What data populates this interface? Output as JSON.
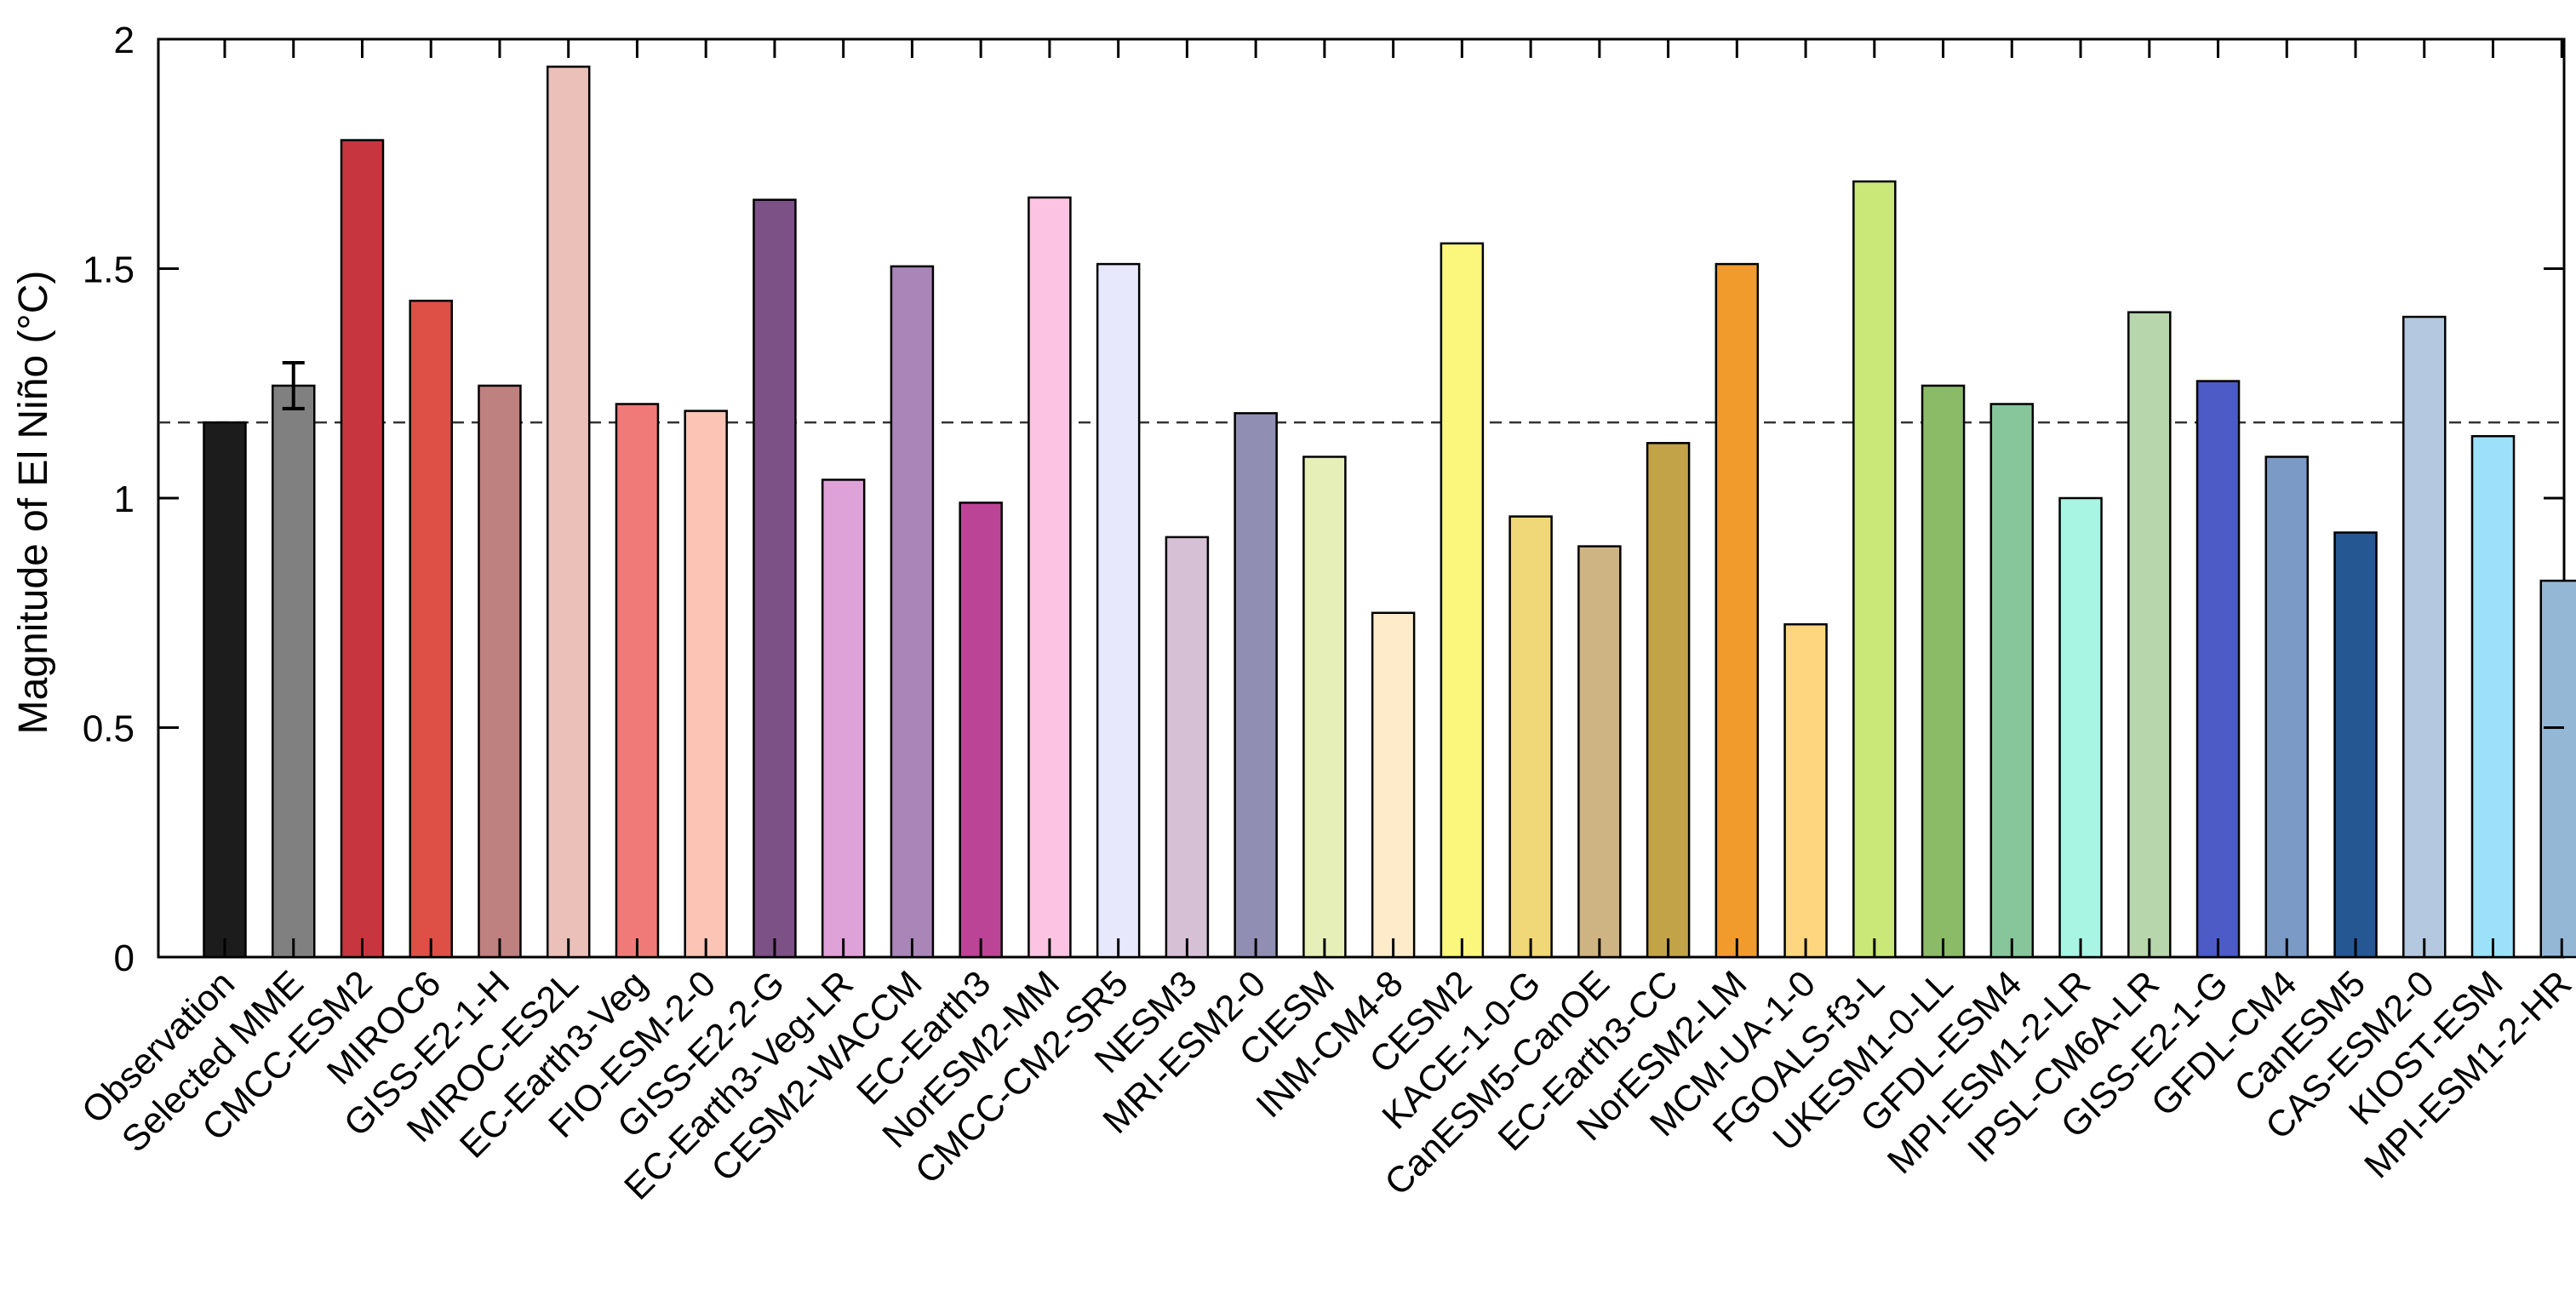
{
  "chart_data": {
    "type": "bar",
    "title": "",
    "xlabel": "",
    "ylabel": "Magnitude of El Niño (°C)",
    "ylim": [
      0,
      2
    ],
    "yticks": [
      0,
      0.5,
      1,
      1.5,
      2
    ],
    "ytick_labels": [
      "0",
      "0.5",
      "1",
      "1.5",
      "2"
    ],
    "reference_line": {
      "value": 1.165,
      "style": "dashed"
    },
    "categories": [
      "Observation",
      "Selected MME",
      "CMCC-ESM2",
      "MIROC6",
      "GISS-E2-1-H",
      "MIROC-ES2L",
      "EC-Earth3-Veg",
      "FIO-ESM-2-0",
      "GISS-E2-2-G",
      "EC-Earth3-Veg-LR",
      "CESM2-WACCM",
      "EC-Earth3",
      "NorESM2-MM",
      "CMCC-CM2-SR5",
      "NESM3",
      "MRI-ESM2-0",
      "CIESM",
      "INM-CM4-8",
      "CESM2",
      "KACE-1-0-G",
      "CanESM5-CanOE",
      "EC-Earth3-CC",
      "NorESM2-LM",
      "MCM-UA-1-0",
      "FGOALS-f3-L",
      "UKESM1-0-LL",
      "GFDL-ESM4",
      "MPI-ESM1-2-LR",
      "IPSL-CM6A-LR",
      "GISS-E2-1-G",
      "GFDL-CM4",
      "CanESM5",
      "CAS-ESM2-0",
      "KIOST-ESM",
      "MPI-ESM1-2-HR"
    ],
    "values": [
      1.165,
      1.245,
      1.78,
      1.43,
      1.245,
      1.94,
      1.205,
      1.19,
      1.65,
      1.04,
      1.505,
      0.99,
      1.655,
      1.51,
      0.915,
      1.185,
      1.09,
      0.75,
      1.555,
      0.96,
      0.895,
      1.12,
      1.51,
      0.725,
      1.69,
      1.245,
      1.205,
      1.0,
      1.405,
      1.255,
      1.09,
      0.925,
      1.395,
      1.135,
      0.82
    ],
    "colors": [
      "#1c1c1c",
      "#808080",
      "#c7363f",
      "#de5046",
      "#bf8080",
      "#eac0b9",
      "#f07a78",
      "#fbc4b4",
      "#7c5185",
      "#dfa2d8",
      "#a985b8",
      "#bc4496",
      "#fcc4e2",
      "#e7e8fb",
      "#d6c0d6",
      "#908fb3",
      "#e6efb7",
      "#fdebca",
      "#fbf67c",
      "#f0d777",
      "#cfb483",
      "#c2a348",
      "#f19b2c",
      "#fed680",
      "#c9e878",
      "#8cbb68",
      "#87c59b",
      "#a8f5e4",
      "#b8d6ac",
      "#4c5bc5",
      "#7b9ac5",
      "#255893",
      "#b4c9df",
      "#9ce1f9",
      "#94b7d6"
    ],
    "error_bars": [
      {
        "category": "Selected MME",
        "low": 1.195,
        "high": 1.295
      }
    ]
  }
}
